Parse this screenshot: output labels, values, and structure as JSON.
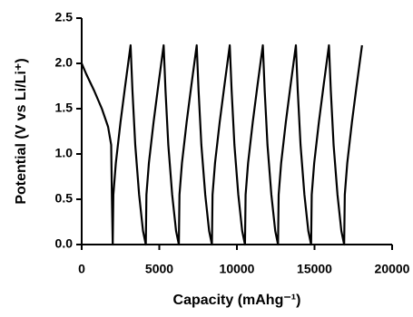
{
  "chart_data": {
    "type": "line",
    "xlabel": "Capacity (mAhg⁻¹)",
    "ylabel": "Potential (V vs Li/Li⁺)",
    "color": "#000000",
    "xlim": [
      0,
      20000
    ],
    "xticks": [
      0,
      5000,
      10000,
      15000,
      20000
    ],
    "ylim": [
      0,
      2.5
    ],
    "yticks": [
      {
        "value": 0,
        "label": "0.0"
      },
      0.5,
      {
        "value": 1,
        "label": "1.0"
      },
      1.5,
      {
        "value": 2,
        "label": "2.0"
      },
      2.5
    ],
    "x": [
      0,
      300,
      800,
      1300,
      1700,
      1900,
      1950,
      2000,
      2040,
      2200,
      2500,
      2800,
      3150,
      3270,
      3450,
      3700,
      3950,
      4130,
      4170,
      4330,
      4630,
      4930,
      5280,
      5400,
      5580,
      5830,
      6080,
      6260,
      6300,
      6460,
      6760,
      7060,
      7410,
      7530,
      7710,
      7960,
      8210,
      8390,
      8430,
      8590,
      8890,
      9190,
      9540,
      9660,
      9840,
      10090,
      10340,
      10520,
      10560,
      10720,
      11020,
      11320,
      11670,
      11790,
      11970,
      12220,
      12470,
      12650,
      12690,
      12850,
      13150,
      13450,
      13800,
      13920,
      14100,
      14350,
      14600,
      14780,
      14820,
      14980,
      15280,
      15580,
      15930,
      16050,
      16230,
      16480,
      16730,
      16910,
      16950,
      17110,
      17410,
      17710,
      18060
    ],
    "values": [
      2.0,
      1.88,
      1.7,
      1.5,
      1.3,
      1.1,
      0.5,
      0,
      0.55,
      0.9,
      1.35,
      1.75,
      2.2,
      1.7,
      1.1,
      0.55,
      0.15,
      0,
      0.55,
      0.9,
      1.35,
      1.75,
      2.2,
      1.7,
      1.1,
      0.55,
      0.15,
      0,
      0.55,
      0.9,
      1.35,
      1.75,
      2.2,
      1.7,
      1.1,
      0.55,
      0.15,
      0,
      0.55,
      0.9,
      1.35,
      1.75,
      2.2,
      1.7,
      1.1,
      0.55,
      0.15,
      0,
      0.55,
      0.9,
      1.35,
      1.75,
      2.2,
      1.7,
      1.1,
      0.55,
      0.15,
      0,
      0.55,
      0.9,
      1.35,
      1.75,
      2.2,
      1.7,
      1.1,
      0.55,
      0.15,
      0,
      0.55,
      0.9,
      1.35,
      1.75,
      2.2,
      1.7,
      1.1,
      0.55,
      0.15,
      0,
      0.55,
      0.9,
      1.35,
      1.75,
      2.2
    ]
  }
}
